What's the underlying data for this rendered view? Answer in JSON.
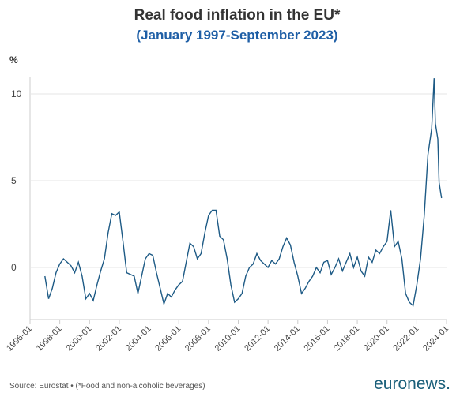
{
  "chart_data": {
    "type": "line",
    "title": "Real food inflation in the EU*",
    "subtitle": "(January 1997-September 2023)",
    "y_label": "%",
    "source": "Source: Eurostat • (*Food and non-alcoholic beverages)",
    "brand": "euronews.",
    "x": [
      "1997-01",
      "1997-04",
      "1997-07",
      "1997-10",
      "1998-01",
      "1998-04",
      "1998-07",
      "1998-10",
      "1999-01",
      "1999-04",
      "1999-07",
      "1999-10",
      "2000-01",
      "2000-04",
      "2000-07",
      "2000-10",
      "2001-01",
      "2001-04",
      "2001-07",
      "2001-10",
      "2002-01",
      "2002-04",
      "2002-07",
      "2002-10",
      "2003-01",
      "2003-04",
      "2003-07",
      "2003-10",
      "2004-01",
      "2004-04",
      "2004-07",
      "2004-10",
      "2005-01",
      "2005-04",
      "2005-07",
      "2005-10",
      "2006-01",
      "2006-04",
      "2006-07",
      "2006-10",
      "2007-01",
      "2007-04",
      "2007-07",
      "2007-10",
      "2008-01",
      "2008-04",
      "2008-07",
      "2008-10",
      "2009-01",
      "2009-04",
      "2009-07",
      "2009-10",
      "2010-01",
      "2010-04",
      "2010-07",
      "2010-10",
      "2011-01",
      "2011-04",
      "2011-07",
      "2011-10",
      "2012-01",
      "2012-04",
      "2012-07",
      "2012-10",
      "2013-01",
      "2013-04",
      "2013-07",
      "2013-10",
      "2014-01",
      "2014-04",
      "2014-07",
      "2014-10",
      "2015-01",
      "2015-04",
      "2015-07",
      "2015-10",
      "2016-01",
      "2016-04",
      "2016-07",
      "2016-10",
      "2017-01",
      "2017-04",
      "2017-07",
      "2017-10",
      "2018-01",
      "2018-04",
      "2018-07",
      "2018-10",
      "2019-01",
      "2019-04",
      "2019-07",
      "2019-10",
      "2020-01",
      "2020-04",
      "2020-07",
      "2020-10",
      "2021-01",
      "2021-04",
      "2021-07",
      "2021-10",
      "2022-01",
      "2022-04",
      "2022-07",
      "2022-10",
      "2023-01",
      "2023-03",
      "2023-04",
      "2023-06",
      "2023-07",
      "2023-09"
    ],
    "series": [
      {
        "name": "Real food inflation",
        "color": "#1d5a85",
        "values": [
          -0.5,
          -1.8,
          -1.2,
          -0.3,
          0.2,
          0.5,
          0.3,
          0.1,
          -0.3,
          0.3,
          -0.5,
          -1.8,
          -1.5,
          -1.9,
          -1.0,
          -0.2,
          0.5,
          2.0,
          3.1,
          3.0,
          3.2,
          1.5,
          -0.3,
          -0.4,
          -0.5,
          -1.5,
          -0.5,
          0.5,
          0.8,
          0.7,
          -0.3,
          -1.2,
          -2.1,
          -1.5,
          -1.7,
          -1.3,
          -1.0,
          -0.8,
          0.3,
          1.4,
          1.2,
          0.5,
          0.8,
          2.0,
          3.0,
          3.3,
          3.3,
          1.8,
          1.6,
          0.5,
          -1.0,
          -2.0,
          -1.8,
          -1.5,
          -0.5,
          0.0,
          0.2,
          0.8,
          0.4,
          0.2,
          0.0,
          0.4,
          0.2,
          0.5,
          1.2,
          1.7,
          1.3,
          0.3,
          -0.5,
          -1.5,
          -1.2,
          -0.8,
          -0.5,
          0.0,
          -0.3,
          0.3,
          0.4,
          -0.4,
          0.0,
          0.5,
          -0.2,
          0.3,
          0.8,
          0.0,
          0.6,
          -0.2,
          -0.5,
          0.6,
          0.3,
          1.0,
          0.8,
          1.2,
          1.5,
          3.3,
          1.2,
          1.5,
          0.5,
          -1.5,
          -2.0,
          -2.2,
          -1.0,
          0.5,
          3.0,
          6.5,
          8.0,
          10.9,
          8.3,
          7.4,
          4.9,
          4.0
        ]
      }
    ],
    "xlim": [
      "1996-01",
      "2024-01"
    ],
    "xticks": [
      "1996-01",
      "1998-01",
      "2000-01",
      "2002-01",
      "2004-01",
      "2006-01",
      "2008-01",
      "2010-01",
      "2012-01",
      "2014-01",
      "2016-01",
      "2018-01",
      "2020-01",
      "2022-01",
      "2024-01"
    ],
    "ylim": [
      -3,
      11
    ],
    "yticks": [
      0,
      5,
      10
    ],
    "grid": true
  }
}
